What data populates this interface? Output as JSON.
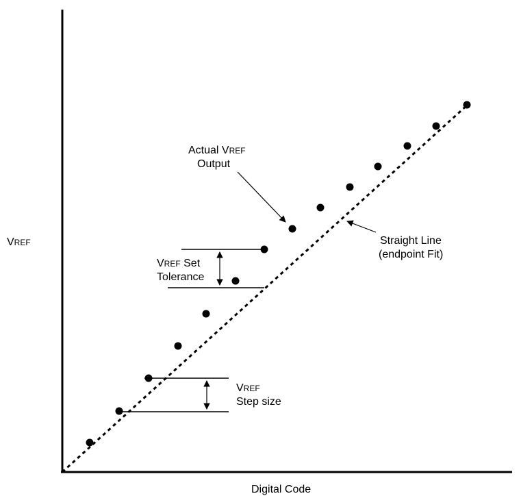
{
  "axes": {
    "y_label": {
      "main": "V",
      "sub": "REF"
    },
    "x_label": "Digital Code"
  },
  "points_count": 14,
  "annotations": {
    "actual_output": {
      "line1_prefix": "Actual V",
      "line1_sub": "REF",
      "line2": "Output"
    },
    "straight_line": {
      "line1": "Straight Line",
      "line2": "(endpoint Fit)"
    },
    "set_tolerance": {
      "line1_main": "V",
      "line1_sub": "REF",
      "line1_suffix": " Set",
      "line2": "Tolerance"
    },
    "step_size": {
      "line1_main": "V",
      "line1_sub": "REF",
      "line2": "Step size"
    }
  }
}
